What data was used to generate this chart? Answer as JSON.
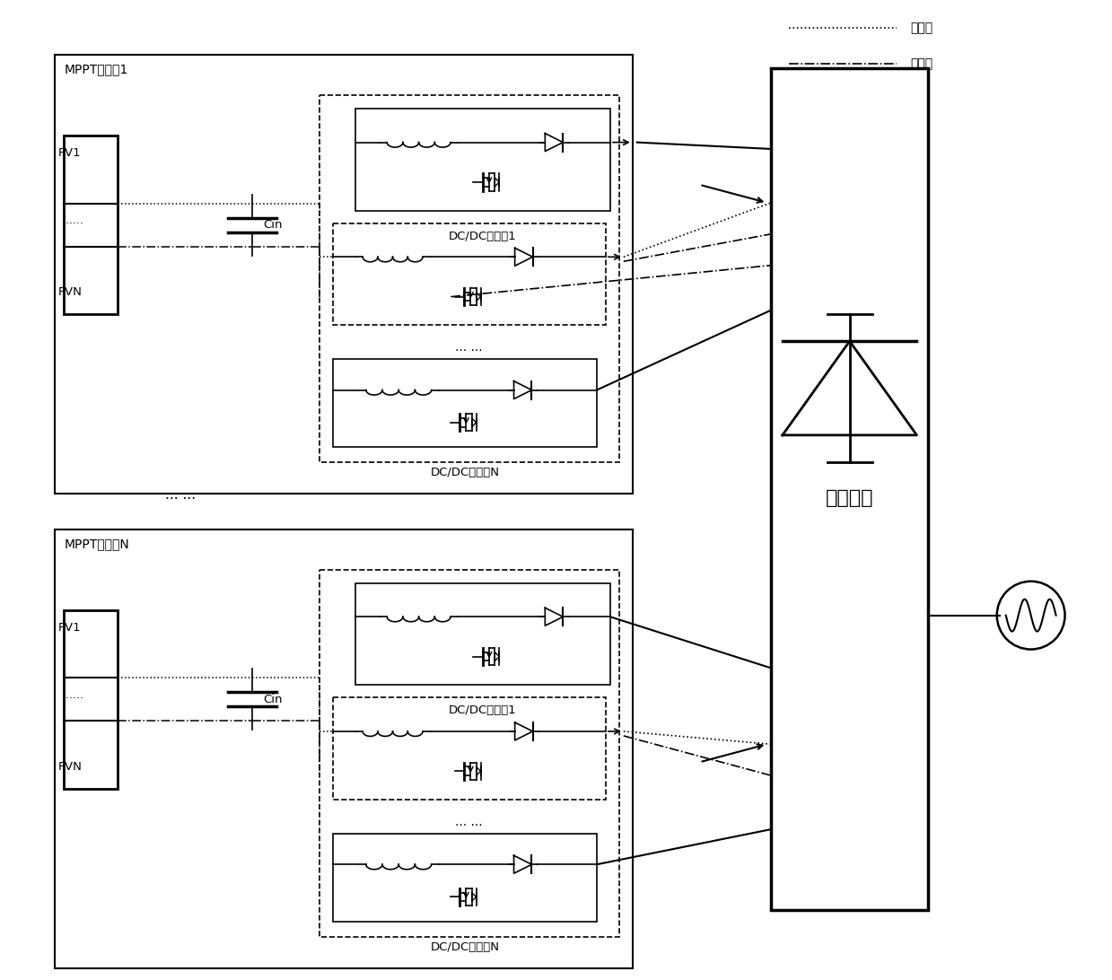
{
  "background": "#ffffff",
  "box1_label": "MPPT汇流符1",
  "box2_label": "MPPT汇流符N",
  "cin_label": "Cin",
  "inv_label": "逆变单元",
  "pos_bus_label": "正母线",
  "neg_bus_label": "负母线",
  "dcdc1_label": "DC/DC变换剹1",
  "dcdcN_label": "DC/DC变换器N",
  "dots": "... ...",
  "pv1": "PV1",
  "pvn": "PVN",
  "ellipsis": "......"
}
